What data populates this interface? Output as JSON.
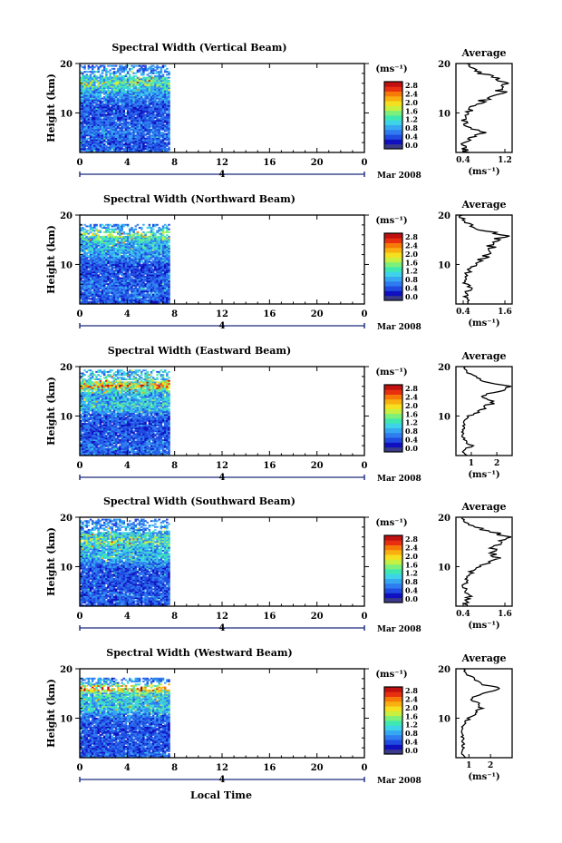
{
  "figure": {
    "xlabel": "Local Time",
    "colorbar_unit": "(ms⁻¹)",
    "colorbar_ticks": [
      "0.0",
      "0.4",
      "0.8",
      "1.2",
      "1.6",
      "2.0",
      "2.4",
      "2.8"
    ],
    "date_label": "Mar 2008",
    "day_label": "4",
    "main_y_label": "Height (km)",
    "avg_title": "Average",
    "avg_xlabel": "(ms⁻¹)",
    "colormap": [
      "#3a3a8a",
      "#1010c0",
      "#1f4be0",
      "#2f7bf0",
      "#36a8f2",
      "#3ed3e8",
      "#3fe8b0",
      "#7cf07a",
      "#c8f040",
      "#f5e020",
      "#f8b010",
      "#f67a08",
      "#e83010",
      "#c01010"
    ]
  },
  "chart_data": [
    {
      "type": "heatmap",
      "title": "Spectral Width (Vertical Beam)",
      "xlabel": "Local Time",
      "ylabel": "Height (km)",
      "x_ticks": [
        "0",
        "4",
        "8",
        "12",
        "16",
        "20",
        "0"
      ],
      "xlim": [
        0,
        24
      ],
      "ylim": [
        2,
        20
      ],
      "y_ticks": [
        10,
        20
      ],
      "data_x_end": 7.6,
      "data_top_km": 19.6,
      "clim": [
        0,
        3.0
      ],
      "profile_means": [
        [
          2,
          0.7
        ],
        [
          4,
          0.6
        ],
        [
          6,
          0.8
        ],
        [
          8,
          0.65
        ],
        [
          10,
          0.6
        ],
        [
          12,
          0.7
        ],
        [
          14,
          1.0
        ],
        [
          15,
          1.3
        ],
        [
          16,
          1.6
        ],
        [
          17,
          1.2
        ],
        [
          18,
          0.9
        ],
        [
          19.6,
          0.7
        ]
      ],
      "average": {
        "xlim": [
          0.4,
          1.2
        ],
        "x_ticks": [
          "0.4",
          "1.2"
        ],
        "profile": [
          [
            2,
            0.55
          ],
          [
            3,
            0.5
          ],
          [
            4,
            0.52
          ],
          [
            5,
            0.6
          ],
          [
            6,
            0.8
          ],
          [
            7,
            0.58
          ],
          [
            8,
            0.55
          ],
          [
            9,
            0.5
          ],
          [
            10,
            0.55
          ],
          [
            11,
            0.62
          ],
          [
            12,
            0.72
          ],
          [
            13,
            0.85
          ],
          [
            14,
            1.0
          ],
          [
            15,
            1.12
          ],
          [
            16,
            1.2
          ],
          [
            16.5,
            1.1
          ],
          [
            17,
            0.95
          ],
          [
            18,
            0.78
          ],
          [
            19,
            0.6
          ],
          [
            20,
            0.55
          ]
        ]
      }
    },
    {
      "type": "heatmap",
      "title": "Spectral Width (Northward Beam)",
      "xlabel": "Local Time",
      "ylabel": "Height (km)",
      "x_ticks": [
        "0",
        "4",
        "8",
        "12",
        "16",
        "20",
        "0"
      ],
      "xlim": [
        0,
        24
      ],
      "ylim": [
        2,
        20
      ],
      "y_ticks": [
        10,
        20
      ],
      "data_x_end": 7.6,
      "data_top_km": 18.0,
      "clim": [
        0,
        3.0
      ],
      "profile_means": [
        [
          2,
          0.6
        ],
        [
          4,
          0.7
        ],
        [
          6,
          0.7
        ],
        [
          8,
          0.6
        ],
        [
          10,
          0.6
        ],
        [
          11,
          0.8
        ],
        [
          12,
          1.0
        ],
        [
          14,
          1.1
        ],
        [
          15,
          1.3
        ],
        [
          16,
          1.6
        ],
        [
          17,
          1.0
        ],
        [
          18,
          0.8
        ]
      ],
      "average": {
        "xlim": [
          0.4,
          1.6
        ],
        "x_ticks": [
          "0.4",
          "1.6"
        ],
        "profile": [
          [
            2,
            0.6
          ],
          [
            3,
            0.65
          ],
          [
            4,
            0.6
          ],
          [
            5,
            0.7
          ],
          [
            6,
            0.62
          ],
          [
            7,
            0.6
          ],
          [
            8,
            0.62
          ],
          [
            9,
            0.7
          ],
          [
            10,
            0.8
          ],
          [
            11,
            0.95
          ],
          [
            12,
            1.1
          ],
          [
            13,
            1.2
          ],
          [
            14,
            1.15
          ],
          [
            15,
            1.3
          ],
          [
            16,
            1.45
          ],
          [
            17,
            0.95
          ],
          [
            18,
            0.7
          ],
          [
            19,
            0.55
          ],
          [
            20,
            0.5
          ]
        ]
      }
    },
    {
      "type": "heatmap",
      "title": "Spectral Width (Eastward Beam)",
      "xlabel": "Local Time",
      "ylabel": "Height (km)",
      "x_ticks": [
        "0",
        "4",
        "8",
        "12",
        "16",
        "20",
        "0"
      ],
      "xlim": [
        0,
        24
      ],
      "ylim": [
        2,
        20
      ],
      "y_ticks": [
        10,
        20
      ],
      "data_x_end": 7.6,
      "data_top_km": 19.2,
      "clim": [
        0,
        3.0
      ],
      "profile_means": [
        [
          2,
          0.7
        ],
        [
          4,
          0.7
        ],
        [
          6,
          0.6
        ],
        [
          8,
          0.6
        ],
        [
          10,
          0.7
        ],
        [
          11,
          1.0
        ],
        [
          12,
          1.3
        ],
        [
          13,
          1.1
        ],
        [
          14,
          1.0
        ],
        [
          15,
          1.3
        ],
        [
          16,
          2.4
        ],
        [
          17,
          1.4
        ],
        [
          19,
          1.0
        ]
      ],
      "average": {
        "xlim": [
          0.4,
          2.6
        ],
        "x_ticks": [
          "1",
          "2"
        ],
        "profile": [
          [
            2,
            0.8
          ],
          [
            3,
            0.7
          ],
          [
            4,
            1.0
          ],
          [
            5,
            0.75
          ],
          [
            6,
            0.7
          ],
          [
            7,
            0.68
          ],
          [
            8,
            0.7
          ],
          [
            9,
            0.75
          ],
          [
            10,
            0.9
          ],
          [
            11,
            1.3
          ],
          [
            12,
            1.6
          ],
          [
            13,
            1.9
          ],
          [
            14,
            1.4
          ],
          [
            15,
            2.1
          ],
          [
            16,
            2.4
          ],
          [
            17,
            1.6
          ],
          [
            18,
            1.1
          ],
          [
            19,
            0.8
          ],
          [
            20,
            0.7
          ]
        ]
      }
    },
    {
      "type": "heatmap",
      "title": "Spectral Width (Southward Beam)",
      "xlabel": "Local Time",
      "ylabel": "Height (km)",
      "x_ticks": [
        "0",
        "4",
        "8",
        "12",
        "16",
        "20",
        "0"
      ],
      "xlim": [
        0,
        24
      ],
      "ylim": [
        2,
        20
      ],
      "y_ticks": [
        10,
        20
      ],
      "data_x_end": 7.6,
      "data_top_km": 19.4,
      "clim": [
        0,
        3.0
      ],
      "profile_means": [
        [
          2,
          0.6
        ],
        [
          4,
          0.7
        ],
        [
          6,
          0.6
        ],
        [
          8,
          0.6
        ],
        [
          10,
          0.7
        ],
        [
          11,
          0.9
        ],
        [
          12,
          1.2
        ],
        [
          13,
          1.0
        ],
        [
          14,
          1.3
        ],
        [
          15,
          1.5
        ],
        [
          16,
          1.4
        ],
        [
          17,
          1.0
        ],
        [
          19,
          0.8
        ]
      ],
      "average": {
        "xlim": [
          0.4,
          1.6
        ],
        "x_ticks": [
          "0.4",
          "1.6"
        ],
        "profile": [
          [
            2,
            0.6
          ],
          [
            3,
            0.62
          ],
          [
            4,
            0.7
          ],
          [
            5,
            0.6
          ],
          [
            6,
            0.58
          ],
          [
            7,
            0.6
          ],
          [
            8,
            0.65
          ],
          [
            9,
            0.75
          ],
          [
            10,
            0.9
          ],
          [
            11,
            1.1
          ],
          [
            12,
            1.3
          ],
          [
            13,
            1.15
          ],
          [
            14,
            1.25
          ],
          [
            15,
            1.4
          ],
          [
            16,
            1.5
          ],
          [
            17,
            1.2
          ],
          [
            18,
            0.8
          ],
          [
            19,
            0.55
          ],
          [
            20,
            0.5
          ]
        ]
      }
    },
    {
      "type": "heatmap",
      "title": "Spectral Width (Westward Beam)",
      "xlabel": "Local Time",
      "ylabel": "Height (km)",
      "x_ticks": [
        "0",
        "4",
        "8",
        "12",
        "16",
        "20",
        "0"
      ],
      "xlim": [
        0,
        24
      ],
      "ylim": [
        2,
        20
      ],
      "y_ticks": [
        10,
        20
      ],
      "data_x_end": 7.6,
      "data_top_km": 18.0,
      "clim": [
        0,
        3.0
      ],
      "profile_means": [
        [
          2,
          0.7
        ],
        [
          4,
          0.6
        ],
        [
          6,
          0.6
        ],
        [
          8,
          0.6
        ],
        [
          10,
          0.7
        ],
        [
          11,
          0.9
        ],
        [
          12,
          1.3
        ],
        [
          13,
          1.1
        ],
        [
          14,
          1.2
        ],
        [
          15,
          1.4
        ],
        [
          16,
          2.6
        ],
        [
          17,
          1.0
        ],
        [
          18,
          0.8
        ]
      ],
      "average": {
        "xlim": [
          0.4,
          3.0
        ],
        "x_ticks": [
          "1",
          "2"
        ],
        "profile": [
          [
            2,
            0.8
          ],
          [
            3,
            0.7
          ],
          [
            4,
            0.75
          ],
          [
            5,
            0.72
          ],
          [
            6,
            0.7
          ],
          [
            7,
            0.68
          ],
          [
            8,
            0.7
          ],
          [
            9,
            0.8
          ],
          [
            10,
            1.0
          ],
          [
            11,
            1.3
          ],
          [
            12,
            1.6
          ],
          [
            13,
            1.4
          ],
          [
            14,
            1.1
          ],
          [
            15,
            1.5
          ],
          [
            16,
            2.6
          ],
          [
            17,
            1.5
          ],
          [
            18,
            1.2
          ],
          [
            19,
            0.9
          ],
          [
            20,
            0.8
          ]
        ]
      }
    }
  ]
}
